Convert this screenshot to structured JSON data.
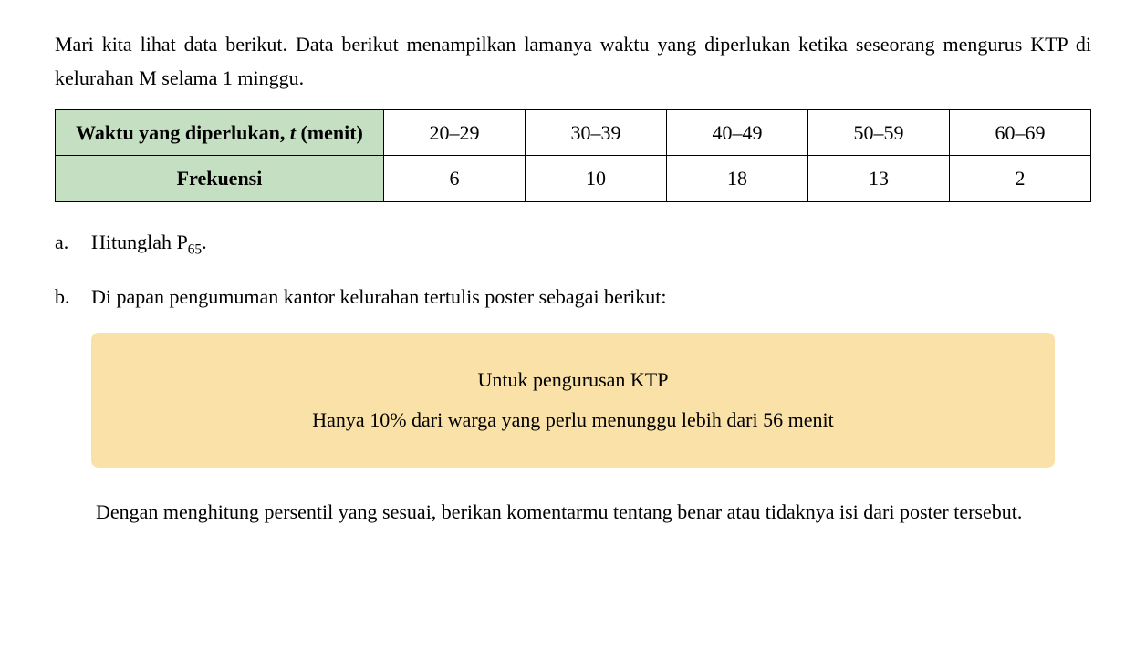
{
  "intro": {
    "text": "Mari kita lihat data berikut. Data berikut menampilkan lamanya waktu yang diperlukan ketika seseorang mengurus KTP di kelurahan M selama 1 minggu."
  },
  "table": {
    "row1_label_prefix": "Waktu yang diperlukan, ",
    "row1_label_var": "t",
    "row1_label_suffix": " (menit)",
    "row2_label": "Frekuensi",
    "columns": [
      "20–29",
      "30–39",
      "40–49",
      "50–59",
      "60–69"
    ],
    "frequencies": [
      "6",
      "10",
      "18",
      "13",
      "2"
    ],
    "header_bg": "#c5dfc2",
    "border_color": "#000000"
  },
  "question_a": {
    "letter": "a.",
    "prefix": "Hitunglah P",
    "subscript": "65",
    "suffix": "."
  },
  "question_b": {
    "letter": "b.",
    "text": "Di papan pengumuman kantor kelurahan tertulis poster sebagai berikut:"
  },
  "poster": {
    "line1": "Untuk pengurusan KTP",
    "line2": "Hanya 10% dari warga yang perlu menunggu lebih dari 56 menit",
    "bg_color": "#fae1a8"
  },
  "closing": {
    "text": "Dengan menghitung persentil yang sesuai, berikan komentarmu tentang benar atau tidaknya isi dari poster tersebut."
  }
}
